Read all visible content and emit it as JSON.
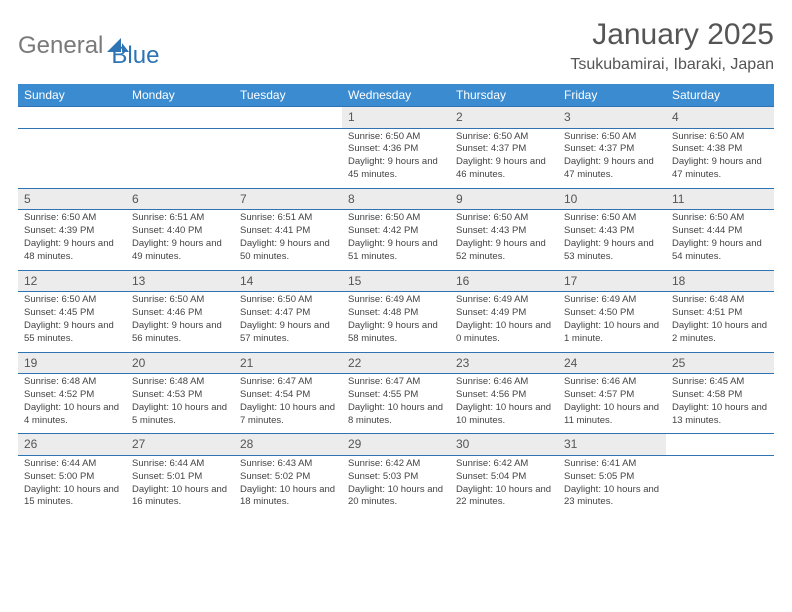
{
  "logo": {
    "text1": "General",
    "text2": "Blue",
    "text1_color": "#7a7a7a",
    "text2_color": "#2e74b5"
  },
  "title": "January 2025",
  "location": "Tsukubamirai, Ibaraki, Japan",
  "weekdays": [
    "Sunday",
    "Monday",
    "Tuesday",
    "Wednesday",
    "Thursday",
    "Friday",
    "Saturday"
  ],
  "colors": {
    "header_bg": "#3a8bd0",
    "header_text": "#ffffff",
    "daynum_bg": "#ececec",
    "rule": "#2e74b5",
    "body_text": "#444444"
  },
  "weeks": [
    [
      null,
      null,
      null,
      {
        "n": "1",
        "sunrise": "Sunrise: 6:50 AM",
        "sunset": "Sunset: 4:36 PM",
        "daylight": "Daylight: 9 hours and 45 minutes."
      },
      {
        "n": "2",
        "sunrise": "Sunrise: 6:50 AM",
        "sunset": "Sunset: 4:37 PM",
        "daylight": "Daylight: 9 hours and 46 minutes."
      },
      {
        "n": "3",
        "sunrise": "Sunrise: 6:50 AM",
        "sunset": "Sunset: 4:37 PM",
        "daylight": "Daylight: 9 hours and 47 minutes."
      },
      {
        "n": "4",
        "sunrise": "Sunrise: 6:50 AM",
        "sunset": "Sunset: 4:38 PM",
        "daylight": "Daylight: 9 hours and 47 minutes."
      }
    ],
    [
      {
        "n": "5",
        "sunrise": "Sunrise: 6:50 AM",
        "sunset": "Sunset: 4:39 PM",
        "daylight": "Daylight: 9 hours and 48 minutes."
      },
      {
        "n": "6",
        "sunrise": "Sunrise: 6:51 AM",
        "sunset": "Sunset: 4:40 PM",
        "daylight": "Daylight: 9 hours and 49 minutes."
      },
      {
        "n": "7",
        "sunrise": "Sunrise: 6:51 AM",
        "sunset": "Sunset: 4:41 PM",
        "daylight": "Daylight: 9 hours and 50 minutes."
      },
      {
        "n": "8",
        "sunrise": "Sunrise: 6:50 AM",
        "sunset": "Sunset: 4:42 PM",
        "daylight": "Daylight: 9 hours and 51 minutes."
      },
      {
        "n": "9",
        "sunrise": "Sunrise: 6:50 AM",
        "sunset": "Sunset: 4:43 PM",
        "daylight": "Daylight: 9 hours and 52 minutes."
      },
      {
        "n": "10",
        "sunrise": "Sunrise: 6:50 AM",
        "sunset": "Sunset: 4:43 PM",
        "daylight": "Daylight: 9 hours and 53 minutes."
      },
      {
        "n": "11",
        "sunrise": "Sunrise: 6:50 AM",
        "sunset": "Sunset: 4:44 PM",
        "daylight": "Daylight: 9 hours and 54 minutes."
      }
    ],
    [
      {
        "n": "12",
        "sunrise": "Sunrise: 6:50 AM",
        "sunset": "Sunset: 4:45 PM",
        "daylight": "Daylight: 9 hours and 55 minutes."
      },
      {
        "n": "13",
        "sunrise": "Sunrise: 6:50 AM",
        "sunset": "Sunset: 4:46 PM",
        "daylight": "Daylight: 9 hours and 56 minutes."
      },
      {
        "n": "14",
        "sunrise": "Sunrise: 6:50 AM",
        "sunset": "Sunset: 4:47 PM",
        "daylight": "Daylight: 9 hours and 57 minutes."
      },
      {
        "n": "15",
        "sunrise": "Sunrise: 6:49 AM",
        "sunset": "Sunset: 4:48 PM",
        "daylight": "Daylight: 9 hours and 58 minutes."
      },
      {
        "n": "16",
        "sunrise": "Sunrise: 6:49 AM",
        "sunset": "Sunset: 4:49 PM",
        "daylight": "Daylight: 10 hours and 0 minutes."
      },
      {
        "n": "17",
        "sunrise": "Sunrise: 6:49 AM",
        "sunset": "Sunset: 4:50 PM",
        "daylight": "Daylight: 10 hours and 1 minute."
      },
      {
        "n": "18",
        "sunrise": "Sunrise: 6:48 AM",
        "sunset": "Sunset: 4:51 PM",
        "daylight": "Daylight: 10 hours and 2 minutes."
      }
    ],
    [
      {
        "n": "19",
        "sunrise": "Sunrise: 6:48 AM",
        "sunset": "Sunset: 4:52 PM",
        "daylight": "Daylight: 10 hours and 4 minutes."
      },
      {
        "n": "20",
        "sunrise": "Sunrise: 6:48 AM",
        "sunset": "Sunset: 4:53 PM",
        "daylight": "Daylight: 10 hours and 5 minutes."
      },
      {
        "n": "21",
        "sunrise": "Sunrise: 6:47 AM",
        "sunset": "Sunset: 4:54 PM",
        "daylight": "Daylight: 10 hours and 7 minutes."
      },
      {
        "n": "22",
        "sunrise": "Sunrise: 6:47 AM",
        "sunset": "Sunset: 4:55 PM",
        "daylight": "Daylight: 10 hours and 8 minutes."
      },
      {
        "n": "23",
        "sunrise": "Sunrise: 6:46 AM",
        "sunset": "Sunset: 4:56 PM",
        "daylight": "Daylight: 10 hours and 10 minutes."
      },
      {
        "n": "24",
        "sunrise": "Sunrise: 6:46 AM",
        "sunset": "Sunset: 4:57 PM",
        "daylight": "Daylight: 10 hours and 11 minutes."
      },
      {
        "n": "25",
        "sunrise": "Sunrise: 6:45 AM",
        "sunset": "Sunset: 4:58 PM",
        "daylight": "Daylight: 10 hours and 13 minutes."
      }
    ],
    [
      {
        "n": "26",
        "sunrise": "Sunrise: 6:44 AM",
        "sunset": "Sunset: 5:00 PM",
        "daylight": "Daylight: 10 hours and 15 minutes."
      },
      {
        "n": "27",
        "sunrise": "Sunrise: 6:44 AM",
        "sunset": "Sunset: 5:01 PM",
        "daylight": "Daylight: 10 hours and 16 minutes."
      },
      {
        "n": "28",
        "sunrise": "Sunrise: 6:43 AM",
        "sunset": "Sunset: 5:02 PM",
        "daylight": "Daylight: 10 hours and 18 minutes."
      },
      {
        "n": "29",
        "sunrise": "Sunrise: 6:42 AM",
        "sunset": "Sunset: 5:03 PM",
        "daylight": "Daylight: 10 hours and 20 minutes."
      },
      {
        "n": "30",
        "sunrise": "Sunrise: 6:42 AM",
        "sunset": "Sunset: 5:04 PM",
        "daylight": "Daylight: 10 hours and 22 minutes."
      },
      {
        "n": "31",
        "sunrise": "Sunrise: 6:41 AM",
        "sunset": "Sunset: 5:05 PM",
        "daylight": "Daylight: 10 hours and 23 minutes."
      },
      null
    ]
  ]
}
